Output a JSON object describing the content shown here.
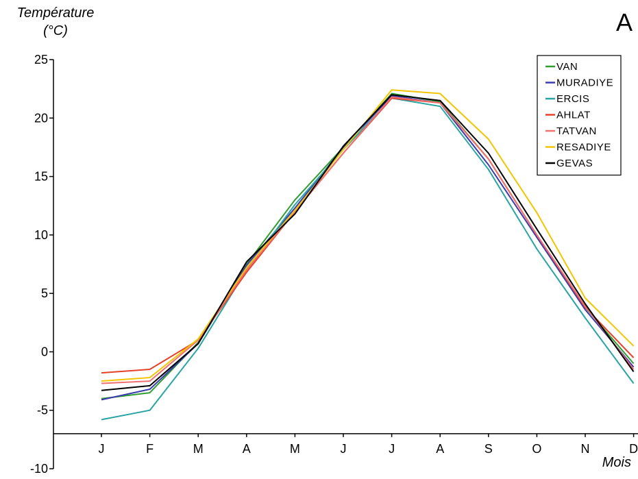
{
  "panel_label": "A",
  "chart_data": {
    "type": "line",
    "ylabel": "Température (°C)",
    "ylabel_lines": [
      "Température",
      "(°C)"
    ],
    "xlabel": "Mois",
    "categories": [
      "J",
      "F",
      "M",
      "A",
      "M",
      "J",
      "J",
      "A",
      "S",
      "O",
      "N",
      "D"
    ],
    "yticks": [
      25,
      20,
      15,
      10,
      5,
      0,
      -5,
      -10
    ],
    "ylim": [
      -10,
      25
    ],
    "x_axis_at": -7,
    "grid": false,
    "legend_position": "top-right",
    "series": [
      {
        "name": "VAN",
        "color": "#2f9e2f",
        "values": [
          -4.0,
          -3.5,
          0.8,
          7.5,
          13.0,
          17.5,
          22.1,
          21.4,
          16.5,
          10.0,
          3.8,
          -1.0
        ]
      },
      {
        "name": "MURADIYE",
        "color": "#3b3bb0",
        "values": [
          -4.1,
          -3.2,
          0.7,
          7.4,
          12.3,
          17.5,
          21.9,
          21.3,
          16.0,
          9.8,
          3.6,
          -1.3
        ]
      },
      {
        "name": "ERCIS",
        "color": "#2aa3a3",
        "values": [
          -5.8,
          -5.0,
          0.3,
          7.0,
          12.6,
          17.3,
          21.7,
          21.0,
          15.6,
          8.8,
          2.9,
          -2.7
        ]
      },
      {
        "name": "AHLAT",
        "color": "#e8412a",
        "values": [
          -1.8,
          -1.5,
          1.0,
          6.8,
          12.0,
          17.0,
          21.7,
          21.3,
          16.5,
          10.0,
          3.8,
          -0.5
        ]
      },
      {
        "name": "TATVAN",
        "color": "#f07070",
        "values": [
          -2.7,
          -2.5,
          1.0,
          7.0,
          12.0,
          17.0,
          21.8,
          21.3,
          16.5,
          10.0,
          3.9,
          -1.5
        ]
      },
      {
        "name": "RESADIYE",
        "color": "#f2c500",
        "values": [
          -2.5,
          -2.2,
          1.1,
          7.2,
          12.1,
          17.3,
          22.4,
          22.1,
          18.2,
          11.9,
          4.6,
          0.5
        ]
      },
      {
        "name": "GEVAS",
        "color": "#000000",
        "values": [
          -3.3,
          -2.9,
          0.7,
          7.7,
          11.8,
          17.6,
          22.0,
          21.5,
          17.0,
          10.5,
          4.1,
          -1.7
        ]
      }
    ]
  }
}
